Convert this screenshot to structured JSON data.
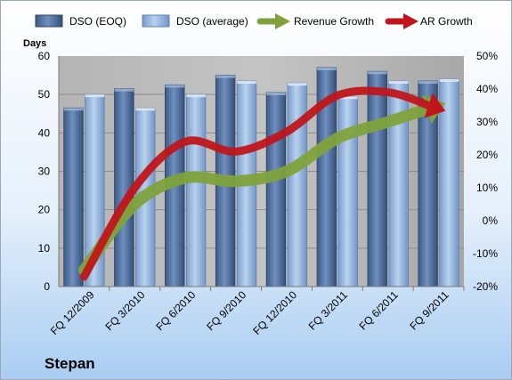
{
  "chart_data": {
    "type": "bar",
    "company": "Stepan",
    "ylabel": "Days",
    "categories": [
      "FQ 12/2009",
      "FQ 3/2010",
      "FQ 6/2010",
      "FQ 9/2010",
      "FQ 12/2010",
      "FQ 3/2011",
      "FQ 6/2011",
      "FQ 9/2011"
    ],
    "y_ticks": [
      "0",
      "10",
      "20",
      "30",
      "40",
      "50",
      "60"
    ],
    "y2_ticks": [
      "-20%",
      "-10%",
      "0%",
      "10%",
      "20%",
      "30%",
      "40%",
      "50%"
    ],
    "ylim": [
      0,
      60
    ],
    "y2lim": [
      -20,
      50
    ],
    "grid": true,
    "legend_position": "top",
    "series": [
      {
        "name": "DSO (EOQ)",
        "kind": "bar",
        "color": "#4a6d9e",
        "values": [
          46.5,
          51.5,
          52.5,
          55,
          50.5,
          57,
          56,
          53.5
        ]
      },
      {
        "name": "DSO (average)",
        "kind": "bar",
        "color": "#8fb0d8",
        "values": [
          50,
          46.5,
          50,
          53.5,
          53,
          49.5,
          53.5,
          54
        ]
      },
      {
        "name": "Revenue Growth",
        "kind": "arrow-line",
        "axis": "right",
        "color": "#7fa23c",
        "values": [
          -15,
          5,
          13,
          12,
          15,
          25,
          30,
          35
        ]
      },
      {
        "name": "AR Growth",
        "kind": "arrow-line",
        "axis": "right",
        "color": "#c0161b",
        "values": [
          -17,
          10,
          24,
          21,
          27,
          38,
          39,
          34
        ]
      }
    ]
  },
  "colors": {
    "background_top": "#ffffff",
    "background_bottom": "#a9cdf2",
    "plot_background": "#a3a3a3"
  }
}
